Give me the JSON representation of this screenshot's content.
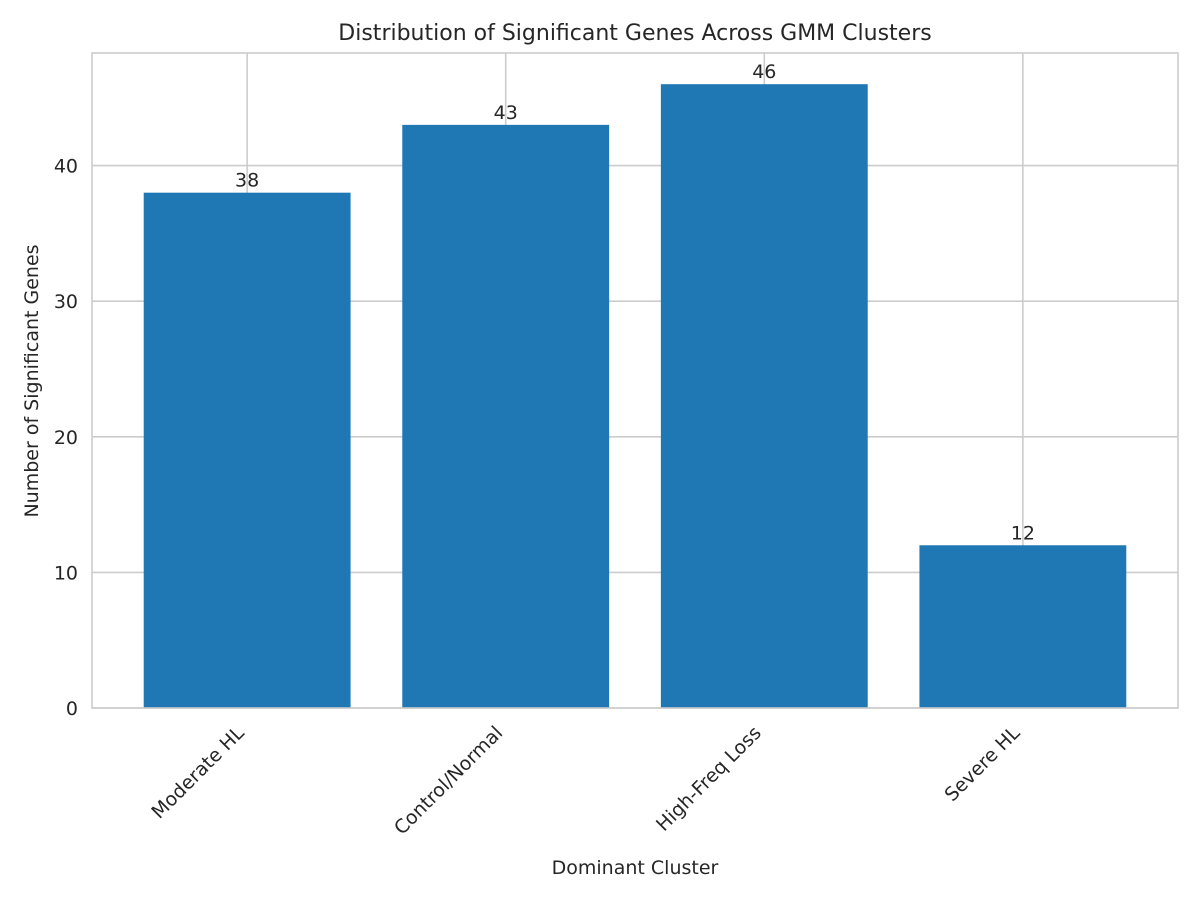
{
  "chart_data": {
    "type": "bar",
    "title": "Distribution of Significant Genes Across GMM Clusters",
    "xlabel": "Dominant Cluster",
    "ylabel": "Number of Significant Genes",
    "categories": [
      "Moderate HL",
      "Control/Normal",
      "High-Freq Loss",
      "Severe HL"
    ],
    "values": [
      38,
      43,
      46,
      12
    ],
    "data_labels": [
      "38",
      "43",
      "46",
      "12"
    ],
    "y_ticks": [
      0,
      10,
      20,
      30,
      40
    ],
    "y_tick_labels": [
      "0",
      "10",
      "20",
      "30",
      "40"
    ],
    "ylim": [
      0,
      48.3
    ],
    "grid": true,
    "bar_color": "#1f77b4",
    "grid_color": "#cccccc"
  }
}
